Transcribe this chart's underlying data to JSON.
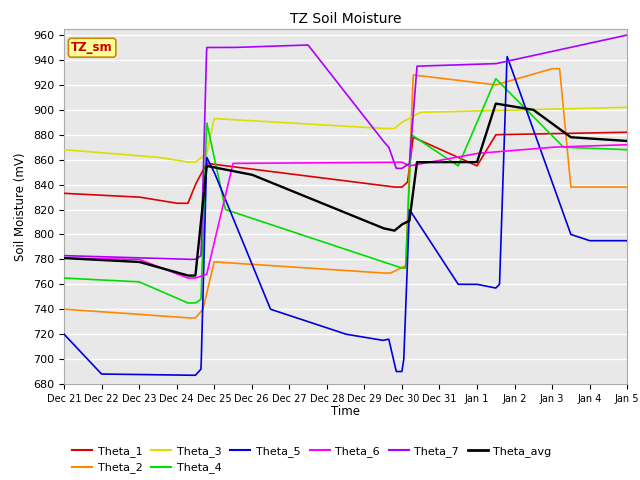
{
  "title": "TZ Soil Moisture",
  "ylabel": "Soil Moisture (mV)",
  "xlabel": "Time",
  "ylim": [
    680,
    965
  ],
  "yticks": [
    680,
    700,
    720,
    740,
    760,
    780,
    800,
    820,
    840,
    860,
    880,
    900,
    920,
    940,
    960
  ],
  "bg_color": "#e8e8e8",
  "tz_sm_label": "TZ_sm",
  "colors": {
    "Theta_1": "#dd0000",
    "Theta_2": "#ff8800",
    "Theta_3": "#dddd00",
    "Theta_4": "#00dd00",
    "Theta_5": "#0000dd",
    "Theta_6": "#ff00ff",
    "Theta_7": "#aa00ff",
    "Theta_avg": "#000000"
  },
  "xtick_labels": [
    "Dec 21",
    "Dec 22",
    "Dec 23",
    "Dec 24",
    "Dec 25",
    "Dec 26",
    "Dec 27",
    "Dec 28",
    "Dec 29",
    "Dec 30",
    "Dec 31",
    "Jan 1",
    "Jan 2",
    "Jan 3",
    "Jan 4",
    "Jan 5"
  ]
}
